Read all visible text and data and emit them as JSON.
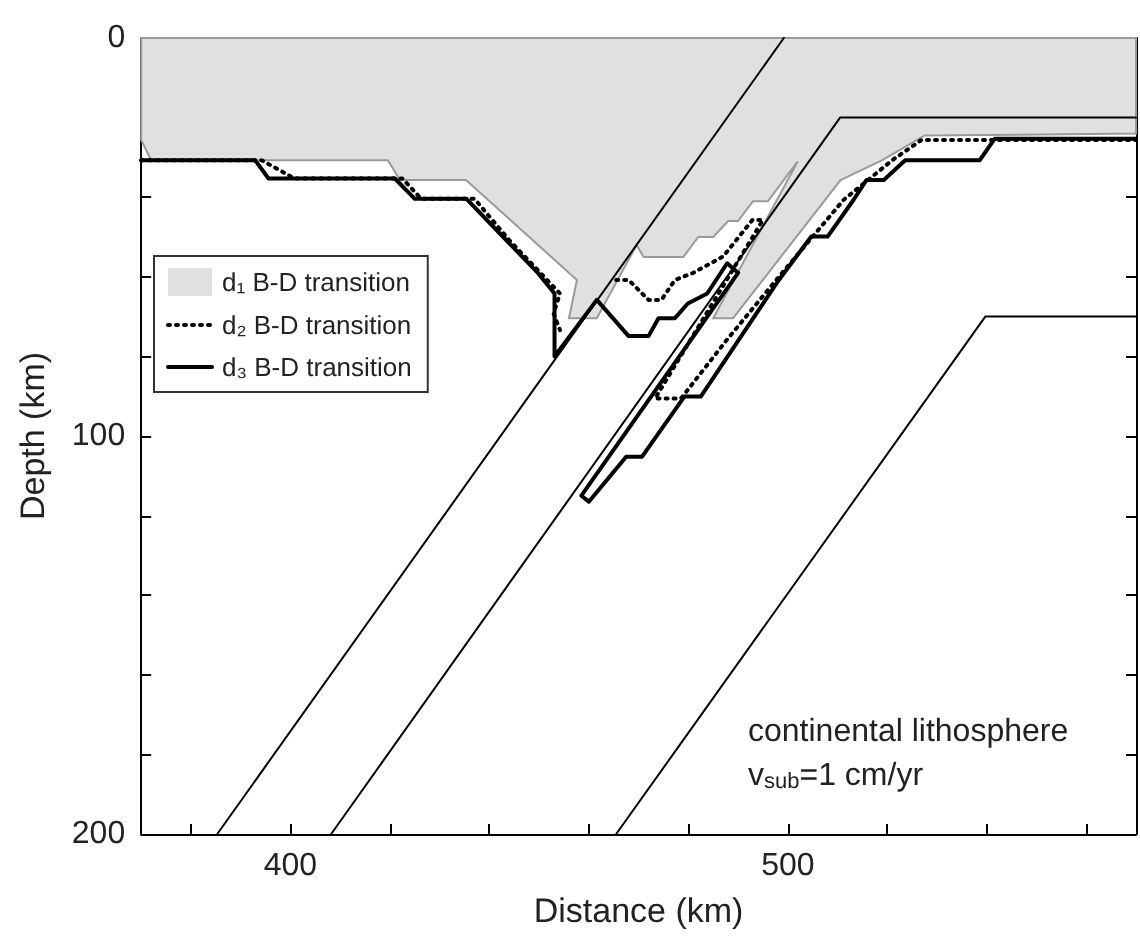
{
  "chart_data": {
    "type": "line",
    "xlabel": "Distance (km)",
    "ylabel": "Depth (km)",
    "xlim": [
      370,
      570
    ],
    "ylim": [
      200,
      0
    ],
    "xticks": [
      {
        "value": 380,
        "label": null
      },
      400,
      {
        "value": 420,
        "label": null
      },
      {
        "value": 440,
        "label": null
      },
      {
        "value": 460,
        "label": null
      },
      {
        "value": 480,
        "label": null
      },
      500,
      {
        "value": 520,
        "label": null
      },
      {
        "value": 540,
        "label": null
      },
      {
        "value": 560,
        "label": null
      }
    ],
    "yticks": [
      0,
      {
        "value": 20,
        "label": null
      },
      {
        "value": 40,
        "label": null
      },
      {
        "value": 60,
        "label": null
      },
      {
        "value": 80,
        "label": null
      },
      100,
      {
        "value": 120,
        "label": null
      },
      {
        "value": 140,
        "label": null
      },
      {
        "value": 160,
        "label": null
      },
      {
        "value": 180,
        "label": null
      },
      200
    ],
    "grid": false,
    "legend": "left",
    "marker": "none",
    "series": [
      {
        "name": "d₁ B-D transition",
        "type": "area",
        "color": "#e0e0e0",
        "x": [
          370,
          372,
          419.6,
          422,
          435.3,
          457.6,
          456,
          461.6,
          469.6,
          471,
          479,
          482,
          485,
          488,
          490,
          493,
          496,
          502,
          485,
          489,
          510.6,
          519,
          527.5,
          570
        ],
        "values": [
          25.6,
          30.7,
          30.7,
          35.7,
          35.7,
          60.8,
          70.4,
          70.4,
          52,
          55,
          55,
          50,
          50,
          46,
          46,
          41,
          41,
          31,
          70.4,
          70.4,
          35.7,
          30.7,
          24.5,
          24
        ]
      },
      {
        "name": "d₂ B-D transition",
        "line_style": "dotted",
        "color": "#000000",
        "x": [
          370,
          394.2,
          400.8,
          422.5,
          426.3,
          437,
          444,
          454.2,
          452.9,
          454.2,
          null,
          465.5,
          468,
          472,
          474.6,
          477.3,
          481,
          487,
          492.9,
          495,
          473.3,
          478.5,
          487.7,
          498.2,
          511.2,
          521,
          526.9,
          570
        ],
        "values": [
          30.7,
          30.7,
          35.3,
          35.3,
          40.4,
          40.4,
          50.8,
          64.2,
          69.2,
          73.4,
          null,
          60.8,
          60.8,
          65.8,
          65.8,
          60.8,
          59,
          54.9,
          45.7,
          45.7,
          90.6,
          90.6,
          75.9,
          60,
          40.7,
          30.7,
          25.6,
          25.6
        ]
      },
      {
        "name": "d₃ B-D transition",
        "line_style": "solid",
        "color": "#000000",
        "x": [
          370,
          392.9,
          395.6,
          421,
          425,
          435.4,
          449.8,
          453.1,
          453.1,
          461.6,
          468,
          472,
          474,
          477.3,
          479.9,
          483.8,
          487.8,
          490,
          458.5,
          460,
          467.5,
          470.7,
          479.2,
          482.5,
          498.2,
          504.7,
          508,
          513.2,
          515.8,
          519.3,
          523.6,
          538.6,
          541.6,
          570
        ],
        "values": [
          30.7,
          30.7,
          35.3,
          35.3,
          40.4,
          40.4,
          59.1,
          64.2,
          80,
          65.8,
          74.9,
          74.9,
          70.4,
          70.4,
          66.7,
          64.2,
          56.6,
          59,
          115,
          116.5,
          105.2,
          105.2,
          90.1,
          90.1,
          60.8,
          49.9,
          49.9,
          40.7,
          35.7,
          35.7,
          30.7,
          30.7,
          25.3,
          25.3
        ]
      },
      {
        "color": "#000000",
        "x": [
          385.3,
          499.2
        ],
        "values": [
          200,
          0
        ]
      },
      {
        "color": "#000000",
        "x": [
          408.2,
          510.5,
          570
        ],
        "values": [
          200,
          20,
          20
        ]
      },
      {
        "color": "#000000",
        "x": [
          465.5,
          539.7,
          570
        ],
        "values": [
          200,
          70,
          70
        ]
      }
    ],
    "annotations": [
      "continental lithosphere",
      "v$_{sub}$=1 cm/yr"
    ]
  }
}
